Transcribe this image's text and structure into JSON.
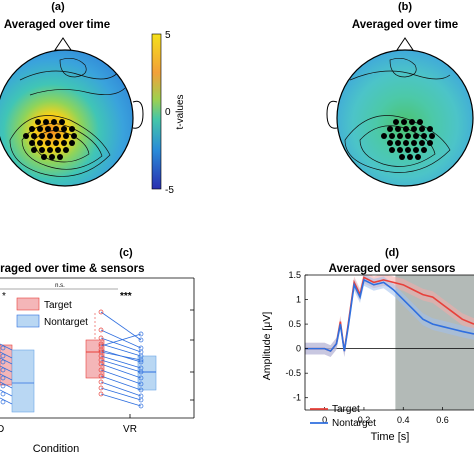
{
  "panels": {
    "a": {
      "label": "(a)",
      "title": "Averaged over time",
      "colorbar": {
        "label": "t-values",
        "ticks": [
          "5",
          "0",
          "-5"
        ],
        "range": [
          -5,
          5
        ]
      }
    },
    "b": {
      "label": "(b)",
      "title": "Averaged over time"
    },
    "c": {
      "label": "(c)",
      "title": "Averaged over time & sensors",
      "legend": [
        "Target",
        "Nontarget"
      ],
      "significance": [
        "n.s.",
        "***",
        "*"
      ],
      "xlabel": "Condition",
      "xticks": [
        "VR"
      ],
      "xtick_left_partial": "D"
    },
    "d": {
      "label": "(d)",
      "title": "Averaged over sensors",
      "ylabel": "Amplitude [μV]",
      "xlabel": "Time [s]",
      "legend": [
        "Target",
        "Nontarget"
      ]
    }
  },
  "colors": {
    "target": "#e8403a",
    "nontarget": "#2f6fdf",
    "target_fill": "#f4b6b8",
    "nontarget_fill": "#b9d7f3",
    "shade": "#9aa39f"
  },
  "chart_data": {
    "type": "line",
    "title": "Averaged over sensors",
    "xlabel": "Time [s]",
    "ylabel": "Amplitude [μV]",
    "xticks": [
      0,
      0.2,
      0.4,
      0.6
    ],
    "yticks": [
      -1,
      -0.5,
      0,
      0.5,
      1,
      1.5
    ],
    "xlim": [
      -0.1,
      0.76
    ],
    "ylim": [
      -1.25,
      1.5
    ],
    "shaded_interval": [
      0.36,
      0.76
    ],
    "x": [
      -0.1,
      -0.05,
      0,
      0.03,
      0.06,
      0.08,
      0.1,
      0.12,
      0.15,
      0.18,
      0.2,
      0.25,
      0.3,
      0.35,
      0.4,
      0.45,
      0.5,
      0.55,
      0.6,
      0.65,
      0.7,
      0.76
    ],
    "series": [
      {
        "name": "Target",
        "values": [
          0,
          0,
          0,
          -0.05,
          0.1,
          0.55,
          -0.05,
          0.5,
          1.35,
          1.1,
          1.45,
          1.35,
          1.4,
          1.35,
          1.3,
          1.2,
          1.1,
          1.05,
          0.9,
          0.75,
          0.6,
          0.5
        ]
      },
      {
        "name": "Nontarget",
        "values": [
          0,
          0,
          0,
          -0.05,
          0.1,
          0.5,
          -0.05,
          0.45,
          1.3,
          1.05,
          1.4,
          1.3,
          1.35,
          1.2,
          1.0,
          0.8,
          0.6,
          0.5,
          0.45,
          0.4,
          0.35,
          0.3
        ]
      }
    ]
  }
}
